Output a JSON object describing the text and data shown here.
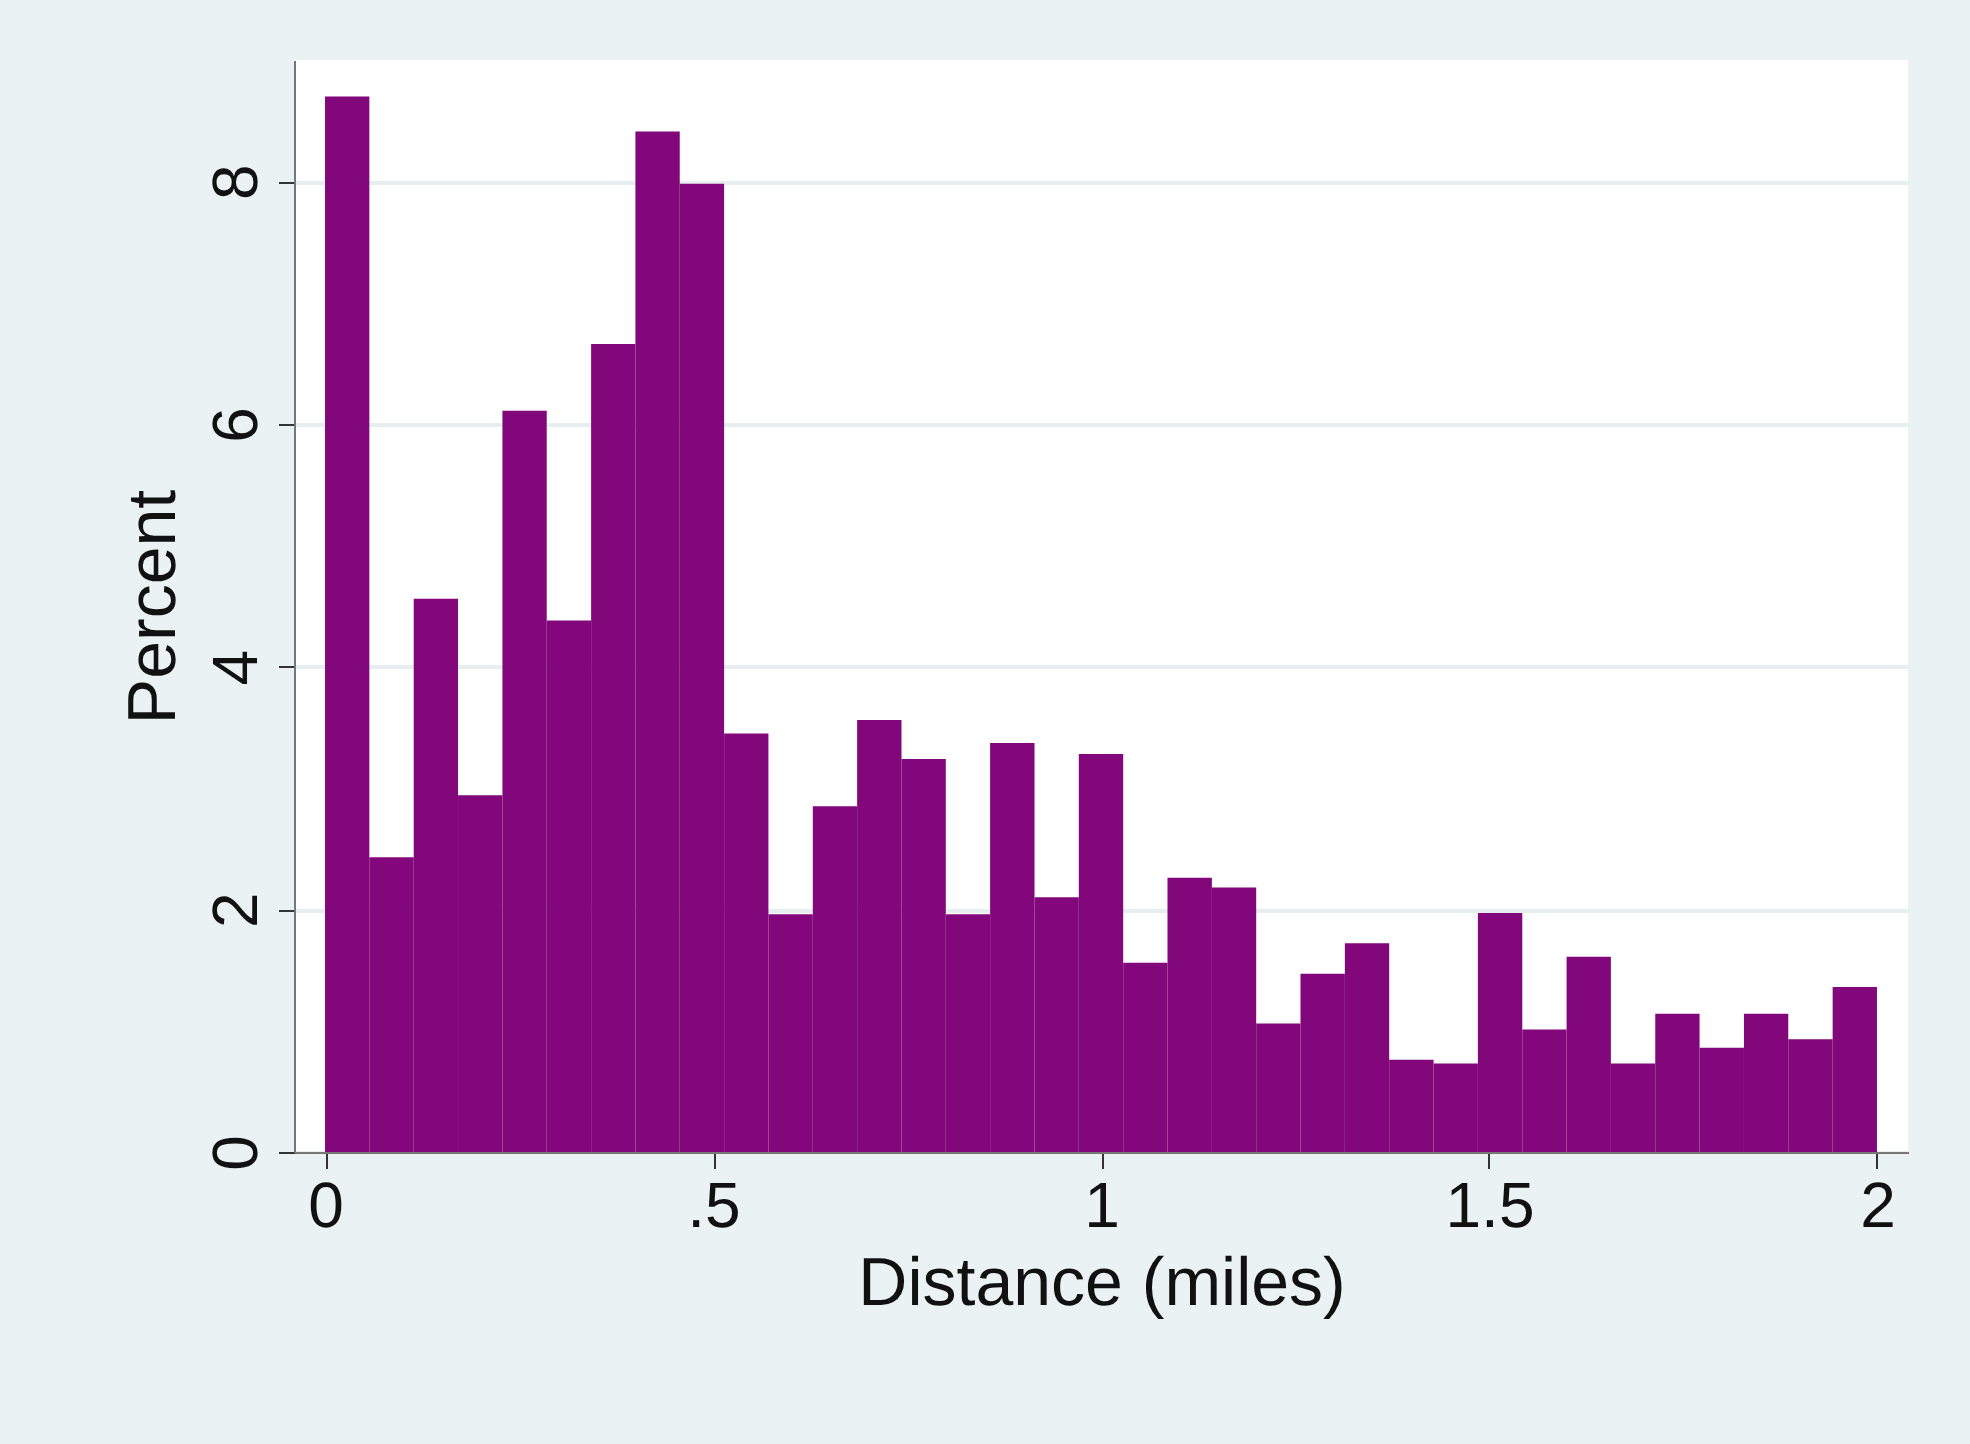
{
  "chart_data": {
    "type": "histogram",
    "xlabel": "Distance (miles)",
    "ylabel": "Percent",
    "color": "#82077a",
    "bins": [
      0,
      0.0571,
      0.1143,
      0.1714,
      0.2286,
      0.2857,
      0.3429,
      0.4,
      0.4571,
      0.5143,
      0.5714,
      0.6286,
      0.6857,
      0.7429,
      0.8,
      0.8571,
      0.9143,
      0.9714,
      1.0286,
      1.0857,
      1.1429,
      1.2,
      1.2571,
      1.3143,
      1.3714,
      1.4286,
      1.4857,
      1.5429,
      1.6,
      1.6571,
      1.7143,
      1.7714,
      1.8286,
      1.8857,
      1.9429,
      2
    ],
    "values": [
      8.7,
      2.43,
      4.56,
      2.94,
      6.11,
      4.38,
      6.66,
      8.41,
      7.98,
      3.45,
      1.96,
      2.85,
      3.56,
      3.24,
      1.96,
      3.37,
      2.1,
      3.28,
      1.56,
      2.26,
      2.18,
      1.06,
      1.47,
      1.72,
      0.76,
      0.73,
      1.97,
      1.01,
      1.61,
      0.73,
      1.14,
      0.86,
      1.14,
      0.93,
      1.36
    ],
    "xlim": [
      -0.04,
      2.04
    ],
    "ylim": [
      0,
      9
    ],
    "xticks": [
      0,
      {
        "value": 0.5,
        "label": ".5"
      },
      1,
      1.5,
      2
    ],
    "yticks": [
      0,
      2,
      4,
      6,
      8
    ],
    "grid": "y"
  }
}
